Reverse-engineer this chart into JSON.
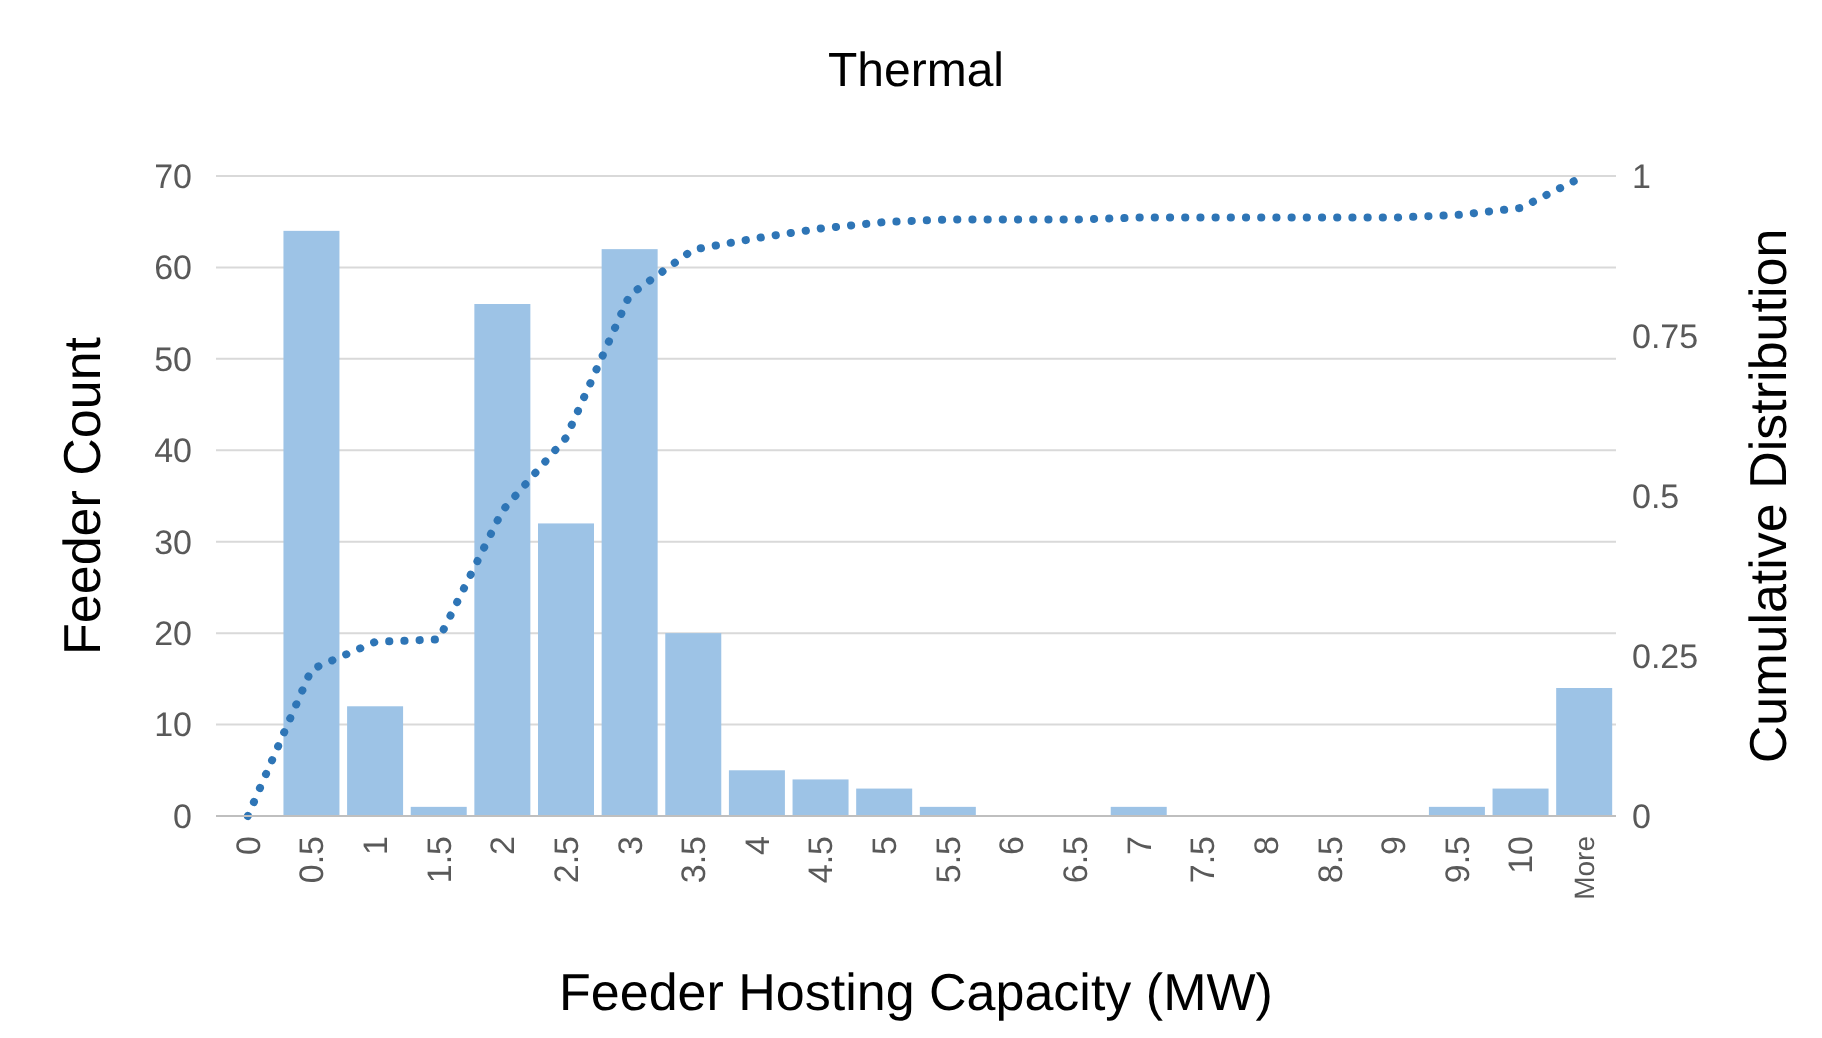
{
  "chart_data": {
    "type": "bar",
    "title": "Thermal",
    "xlabel": "Feeder Hosting Capacity (MW)",
    "ylabel": "Feeder Count",
    "y2label": "Cumulative Distribution",
    "categories": [
      "0",
      "0.5",
      "1",
      "1.5",
      "2",
      "2.5",
      "3",
      "3.5",
      "4",
      "4.5",
      "5",
      "5.5",
      "6",
      "6.5",
      "7",
      "7.5",
      "8",
      "8.5",
      "9",
      "9.5",
      "10",
      "More"
    ],
    "series": [
      {
        "color": "#9dc3e6",
        "values": [
          0,
          64,
          12,
          1,
          56,
          32,
          62,
          20,
          5,
          4,
          3,
          1,
          0,
          0,
          1,
          0,
          0,
          0,
          0,
          1,
          3,
          14
        ]
      },
      {
        "type": "line",
        "axis": "y2",
        "color": "#2e75b6",
        "line_style": "dotted",
        "values": [
          0,
          0.229,
          0.272,
          0.276,
          0.477,
          0.591,
          0.814,
          0.885,
          0.903,
          0.918,
          0.928,
          0.932,
          0.932,
          0.932,
          0.935,
          0.935,
          0.935,
          0.935,
          0.935,
          0.939,
          0.95,
          1
        ]
      }
    ],
    "ylim": [
      0,
      70
    ],
    "yticks": [
      0,
      10,
      20,
      30,
      40,
      50,
      60,
      70
    ],
    "y2lim": [
      0,
      1
    ],
    "y2ticks": [
      0,
      0.25,
      0.5,
      0.75,
      1
    ],
    "grid": "y"
  }
}
